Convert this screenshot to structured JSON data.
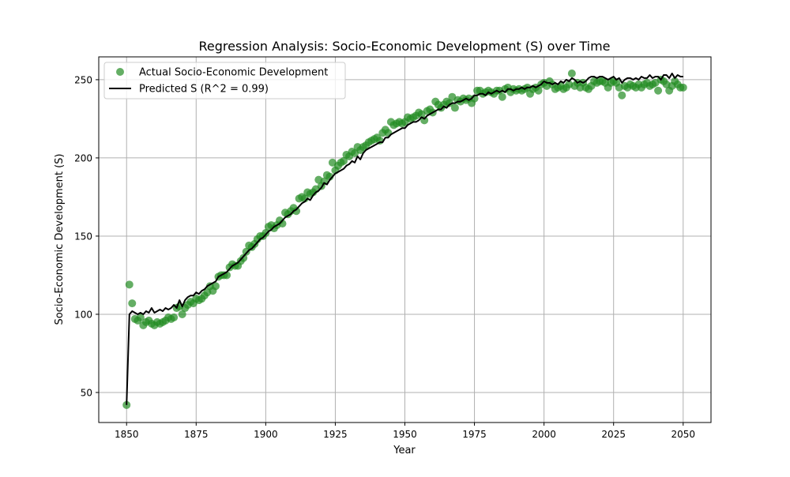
{
  "chart_data": {
    "type": "scatter",
    "title": "Regression Analysis: Socio-Economic Development (S) over Time",
    "xlabel": "Year",
    "ylabel": "Socio-Economic Development (S)",
    "xlim": [
      1840,
      2060
    ],
    "ylim": [
      30.8,
      264.6
    ],
    "xticks": [
      1850,
      1875,
      1900,
      1925,
      1950,
      1975,
      2000,
      2025,
      2050
    ],
    "yticks": [
      50,
      100,
      150,
      200,
      250
    ],
    "grid": true,
    "legend_position": "top-left",
    "x": [
      1850,
      1851,
      1852,
      1853,
      1854,
      1855,
      1856,
      1857,
      1858,
      1859,
      1860,
      1861,
      1862,
      1863,
      1864,
      1865,
      1866,
      1867,
      1868,
      1869,
      1870,
      1871,
      1872,
      1873,
      1874,
      1875,
      1876,
      1877,
      1878,
      1879,
      1880,
      1881,
      1882,
      1883,
      1884,
      1885,
      1886,
      1887,
      1888,
      1889,
      1890,
      1891,
      1892,
      1893,
      1894,
      1895,
      1896,
      1897,
      1898,
      1899,
      1900,
      1901,
      1902,
      1903,
      1904,
      1905,
      1906,
      1907,
      1908,
      1909,
      1910,
      1911,
      1912,
      1913,
      1914,
      1915,
      1916,
      1917,
      1918,
      1919,
      1920,
      1921,
      1922,
      1923,
      1924,
      1925,
      1926,
      1927,
      1928,
      1929,
      1930,
      1931,
      1932,
      1933,
      1934,
      1935,
      1936,
      1937,
      1938,
      1939,
      1940,
      1941,
      1942,
      1943,
      1944,
      1945,
      1946,
      1947,
      1948,
      1949,
      1950,
      1951,
      1952,
      1953,
      1954,
      1955,
      1956,
      1957,
      1958,
      1959,
      1960,
      1961,
      1962,
      1963,
      1964,
      1965,
      1966,
      1967,
      1968,
      1969,
      1970,
      1971,
      1972,
      1973,
      1974,
      1975,
      1976,
      1977,
      1978,
      1979,
      1980,
      1981,
      1982,
      1983,
      1984,
      1985,
      1986,
      1987,
      1988,
      1989,
      1990,
      1991,
      1992,
      1993,
      1994,
      1995,
      1996,
      1997,
      1998,
      1999,
      2000,
      2001,
      2002,
      2003,
      2004,
      2005,
      2006,
      2007,
      2008,
      2009,
      2010,
      2011,
      2012,
      2013,
      2014,
      2015,
      2016,
      2017,
      2018,
      2019,
      2020,
      2021,
      2022,
      2023,
      2024,
      2025,
      2026,
      2027,
      2028,
      2029,
      2030,
      2031,
      2032,
      2033,
      2034,
      2035,
      2036,
      2037,
      2038,
      2039,
      2040,
      2041,
      2042,
      2043,
      2044,
      2045,
      2046,
      2047,
      2048,
      2049,
      2050
    ],
    "series": [
      {
        "name": "Actual Socio-Economic Development",
        "kind": "scatter",
        "color": "#228b22",
        "values": [
          42,
          119,
          107,
          97,
          96,
          98,
          93,
          95,
          96,
          94,
          93,
          95,
          94,
          95,
          96,
          98,
          97,
          98,
          104,
          105,
          100,
          104,
          106,
          108,
          107,
          110,
          109,
          110,
          112,
          114,
          118,
          115,
          118,
          124,
          125,
          125,
          125,
          130,
          132,
          131,
          131,
          134,
          136,
          140,
          144,
          143,
          145,
          148,
          150,
          150,
          152,
          156,
          157,
          155,
          157,
          160,
          158,
          165,
          164,
          166,
          168,
          166,
          174,
          175,
          174,
          178,
          177,
          178,
          180,
          186,
          182,
          185,
          189,
          188,
          197,
          192,
          195,
          197,
          198,
          202,
          201,
          204,
          203,
          207,
          205,
          207,
          208,
          210,
          211,
          212,
          213,
          211,
          216,
          218,
          216,
          223,
          221,
          222,
          223,
          222,
          223,
          226,
          225,
          226,
          227,
          229,
          228,
          224,
          230,
          231,
          229,
          236,
          234,
          232,
          234,
          236,
          235,
          239,
          232,
          237,
          236,
          238,
          237,
          238,
          235,
          238,
          243,
          243,
          241,
          242,
          243,
          242,
          241,
          243,
          243,
          239,
          244,
          245,
          242,
          244,
          243,
          244,
          243,
          244,
          245,
          241,
          244,
          245,
          243,
          247,
          248,
          246,
          249,
          247,
          244,
          245,
          246,
          244,
          245,
          247,
          254,
          246,
          248,
          245,
          248,
          245,
          244,
          246,
          249,
          248,
          249,
          249,
          248,
          245,
          248,
          249,
          248,
          245,
          240,
          246,
          245,
          247,
          246,
          245,
          247,
          245,
          247,
          248,
          246,
          247,
          248,
          243,
          250,
          249,
          247,
          243,
          246,
          249,
          247,
          245,
          245
        ]
      },
      {
        "name": "Predicted S (R^2 = 0.99)",
        "kind": "line",
        "color": "#000000",
        "values": [
          42,
          100,
          102,
          101,
          100,
          101,
          100,
          102,
          101,
          104,
          101,
          102,
          103,
          102,
          104,
          103,
          104,
          106,
          104,
          109,
          105,
          109,
          111,
          112,
          112,
          114,
          113,
          115,
          116,
          118,
          119,
          120,
          121,
          124,
          125,
          126,
          127,
          129,
          131,
          132,
          133,
          135,
          137,
          139,
          141,
          142,
          144,
          146,
          148,
          149,
          151,
          153,
          154,
          156,
          157,
          158,
          160,
          162,
          163,
          164,
          166,
          167,
          169,
          171,
          172,
          174,
          173,
          176,
          178,
          179,
          181,
          184,
          183,
          186,
          188,
          190,
          191,
          192,
          193,
          195,
          196,
          198,
          197,
          201,
          199,
          203,
          205,
          206,
          207,
          208,
          209,
          210,
          210,
          213,
          213,
          215,
          216,
          217,
          218,
          219,
          219,
          221,
          222,
          223,
          223,
          224,
          226,
          225,
          227,
          228,
          229,
          230,
          231,
          231,
          233,
          232,
          234,
          235,
          235,
          236,
          236,
          237,
          238,
          237,
          238,
          240,
          240,
          241,
          241,
          240,
          242,
          241,
          242,
          243,
          242,
          243,
          242,
          244,
          244,
          243,
          244,
          244,
          245,
          244,
          245,
          245,
          246,
          245,
          246,
          247,
          249,
          248,
          248,
          247,
          248,
          247,
          249,
          248,
          250,
          249,
          251,
          250,
          248,
          249,
          248,
          249,
          251,
          252,
          252,
          251,
          252,
          252,
          251,
          250,
          251,
          252,
          250,
          251,
          248,
          250,
          251,
          251,
          250,
          251,
          250,
          252,
          251,
          251,
          253,
          251,
          252,
          252,
          250,
          253,
          253,
          251,
          254,
          251,
          253,
          252,
          252
        ]
      }
    ]
  }
}
